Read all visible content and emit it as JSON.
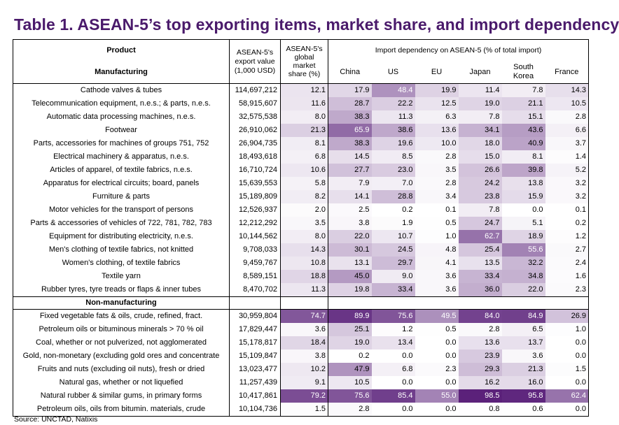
{
  "title": "Table 1. ASEAN-5’s top exporting items, market share, and import dependency",
  "header": {
    "product": "Product",
    "manufacturing": "Manufacturing",
    "export_value": [
      "ASEAN-5's",
      "export value",
      "(1,000 USD)"
    ],
    "market_share": [
      "ASEAN-5's",
      "global",
      "market",
      "share (%)"
    ],
    "import_dependency": "Import dependency on ASEAN-5 (% of total import)",
    "countries": [
      "China",
      "US",
      "EU",
      "Japan",
      "South Korea",
      "France"
    ]
  },
  "manufacturing_rows": [
    {
      "product": "Cathode valves & tubes",
      "export": "114,697,212",
      "share": "12.1",
      "china": "17.9",
      "us": "48.4",
      "eu": "19.9",
      "japan": "11.4",
      "korea": "7.8",
      "france": "14.3"
    },
    {
      "product": "Telecommunication equipment, n.e.s.; & parts, n.e.s.",
      "export": "58,915,607",
      "share": "11.6",
      "china": "28.7",
      "us": "22.2",
      "eu": "12.5",
      "japan": "19.0",
      "korea": "21.1",
      "france": "10.5"
    },
    {
      "product": "Automatic data processing machines, n.e.s.",
      "export": "32,575,538",
      "share": "8.0",
      "china": "38.3",
      "us": "11.3",
      "eu": "6.3",
      "japan": "7.8",
      "korea": "15.1",
      "france": "2.8"
    },
    {
      "product": "Footwear",
      "export": "26,910,062",
      "share": "21.3",
      "china": "65.9",
      "us": "38.6",
      "eu": "13.6",
      "japan": "34.1",
      "korea": "43.6",
      "france": "6.6"
    },
    {
      "product": "Parts, accessories for machines of groups 751, 752",
      "export": "26,904,735",
      "share": "8.1",
      "china": "38.3",
      "us": "19.6",
      "eu": "10.0",
      "japan": "18.0",
      "korea": "40.9",
      "france": "3.7"
    },
    {
      "product": "Electrical machinery & apparatus, n.e.s.",
      "export": "18,493,618",
      "share": "6.8",
      "china": "14.5",
      "us": "8.5",
      "eu": "2.8",
      "japan": "15.0",
      "korea": "8.1",
      "france": "1.4"
    },
    {
      "product": "Articles of apparel, of textile fabrics, n.e.s.",
      "export": "16,710,724",
      "share": "10.6",
      "china": "27.7",
      "us": "23.0",
      "eu": "3.5",
      "japan": "26.6",
      "korea": "39.8",
      "france": "5.2"
    },
    {
      "product": "Apparatus for electrical circuits; board, panels",
      "export": "15,639,553",
      "share": "5.8",
      "china": "7.9",
      "us": "7.0",
      "eu": "2.8",
      "japan": "24.2",
      "korea": "13.8",
      "france": "3.2"
    },
    {
      "product": "Furniture & parts",
      "export": "15,189,809",
      "share": "8.2",
      "china": "14.1",
      "us": "28.8",
      "eu": "3.4",
      "japan": "23.8",
      "korea": "15.9",
      "france": "3.2"
    },
    {
      "product": "Motor vehicles for the transport of persons",
      "export": "12,526,937",
      "share": "2.0",
      "china": "2.5",
      "us": "0.2",
      "eu": "0.1",
      "japan": "7.8",
      "korea": "0.0",
      "france": "0.1"
    },
    {
      "product": "Parts & accessories of vehicles of 722, 781, 782, 783",
      "export": "12,212,292",
      "share": "3.5",
      "china": "3.8",
      "us": "1.9",
      "eu": "0.5",
      "japan": "24.7",
      "korea": "5.1",
      "france": "0.2"
    },
    {
      "product": "Equipment for distributing electricity, n.e.s.",
      "export": "10,144,562",
      "share": "8.0",
      "china": "22.0",
      "us": "10.7",
      "eu": "1.0",
      "japan": "62.7",
      "korea": "18.9",
      "france": "1.2"
    },
    {
      "product": "Men's clothing of textile fabrics, not knitted",
      "export": "9,708,033",
      "share": "14.3",
      "china": "30.1",
      "us": "24.5",
      "eu": "4.8",
      "japan": "25.4",
      "korea": "55.6",
      "france": "2.7"
    },
    {
      "product": "Women's clothing, of textile fabrics",
      "export": "9,459,767",
      "share": "10.8",
      "china": "13.1",
      "us": "29.7",
      "eu": "4.1",
      "japan": "13.5",
      "korea": "32.2",
      "france": "2.4"
    },
    {
      "product": "Textile yarn",
      "export": "8,589,151",
      "share": "18.8",
      "china": "45.0",
      "us": "9.0",
      "eu": "3.6",
      "japan": "33.4",
      "korea": "34.8",
      "france": "1.6"
    },
    {
      "product": "Rubber tyres, tyre treads or flaps & inner tubes",
      "export": "8,470,702",
      "share": "11.3",
      "china": "19.8",
      "us": "33.4",
      "eu": "3.6",
      "japan": "36.0",
      "korea": "22.0",
      "france": "2.3"
    }
  ],
  "non_manufacturing_label": "Non-manufacturing",
  "non_manufacturing_rows": [
    {
      "product": "Fixed vegetable fats & oils, crude, refined, fract.",
      "export": "30,959,804",
      "share": "74.7",
      "china": "89.9",
      "us": "75.6",
      "eu": "49.5",
      "japan": "84.0",
      "korea": "84.9",
      "france": "26.9"
    },
    {
      "product": "Petroleum oils or bituminous minerals > 70 % oil",
      "export": "17,829,447",
      "share": "3.6",
      "china": "25.1",
      "us": "1.2",
      "eu": "0.5",
      "japan": "2.8",
      "korea": "6.5",
      "france": "1.0"
    },
    {
      "product": "Coal, whether or not pulverized, not agglomerated",
      "export": "15,178,817",
      "share": "18.4",
      "china": "19.0",
      "us": "13.4",
      "eu": "0.0",
      "japan": "13.6",
      "korea": "13.7",
      "france": "0.0"
    },
    {
      "product": "Gold, non-monetary (excluding gold ores and concentrate",
      "export": "15,109,847",
      "share": "3.8",
      "china": "0.2",
      "us": "0.0",
      "eu": "0.0",
      "japan": "23.9",
      "korea": "3.6",
      "france": "0.0"
    },
    {
      "product": "Fruits and nuts (excluding oil nuts), fresh or dried",
      "export": "13,023,477",
      "share": "10.2",
      "china": "47.9",
      "us": "6.8",
      "eu": "2.3",
      "japan": "29.3",
      "korea": "21.3",
      "france": "1.5"
    },
    {
      "product": "Natural gas, whether or not liquefied",
      "export": "11,257,439",
      "share": "9.1",
      "china": "10.5",
      "us": "0.0",
      "eu": "0.0",
      "japan": "16.2",
      "korea": "16.0",
      "france": "0.0"
    },
    {
      "product": "Natural rubber & similar gums, in primary forms",
      "export": "10,417,861",
      "share": "79.2",
      "china": "75.6",
      "us": "85.4",
      "eu": "55.0",
      "japan": "98.5",
      "korea": "95.8",
      "france": "62.4"
    },
    {
      "product": "Petroleum oils, oils from bitumin. materials, crude",
      "export": "10,104,736",
      "share": "1.5",
      "china": "2.8",
      "us": "0.0",
      "eu": "0.0",
      "japan": "0.8",
      "korea": "0.6",
      "france": "0.0"
    }
  ],
  "source": "Source: UNCTAD, Natixis"
}
